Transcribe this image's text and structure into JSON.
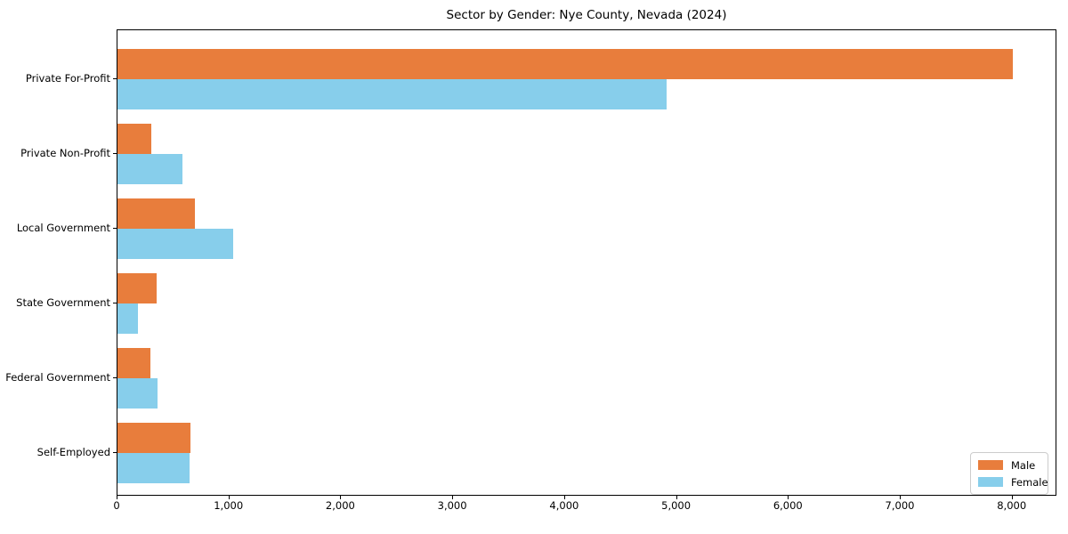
{
  "chart_data": {
    "type": "bar",
    "orientation": "horizontal",
    "title": "Sector by Gender: Nye County, Nevada (2024)",
    "categories": [
      "Private For-Profit",
      "Private Non-Profit",
      "Local Government",
      "State Government",
      "Federal Government",
      "Self-Employed"
    ],
    "series": [
      {
        "name": "Male",
        "color": "#e87d3c",
        "values": [
          8000,
          300,
          690,
          350,
          295,
          655
        ]
      },
      {
        "name": "Female",
        "color": "#87ceeb",
        "values": [
          4910,
          580,
          1030,
          185,
          360,
          640
        ]
      }
    ],
    "xlabel": "",
    "ylabel": "",
    "xlim": [
      0,
      8400
    ],
    "xticks": [
      0,
      1000,
      2000,
      3000,
      4000,
      5000,
      6000,
      7000,
      8000
    ],
    "xtick_labels": [
      "0",
      "1,000",
      "2,000",
      "3,000",
      "4,000",
      "5,000",
      "6,000",
      "7,000",
      "8,000"
    ],
    "grid": false,
    "legend": {
      "position": "lower right",
      "entries": [
        {
          "label": "Male",
          "color": "#e87d3c"
        },
        {
          "label": "Female",
          "color": "#87ceeb"
        }
      ]
    },
    "axis_color": "#000000",
    "background": "#ffffff"
  }
}
